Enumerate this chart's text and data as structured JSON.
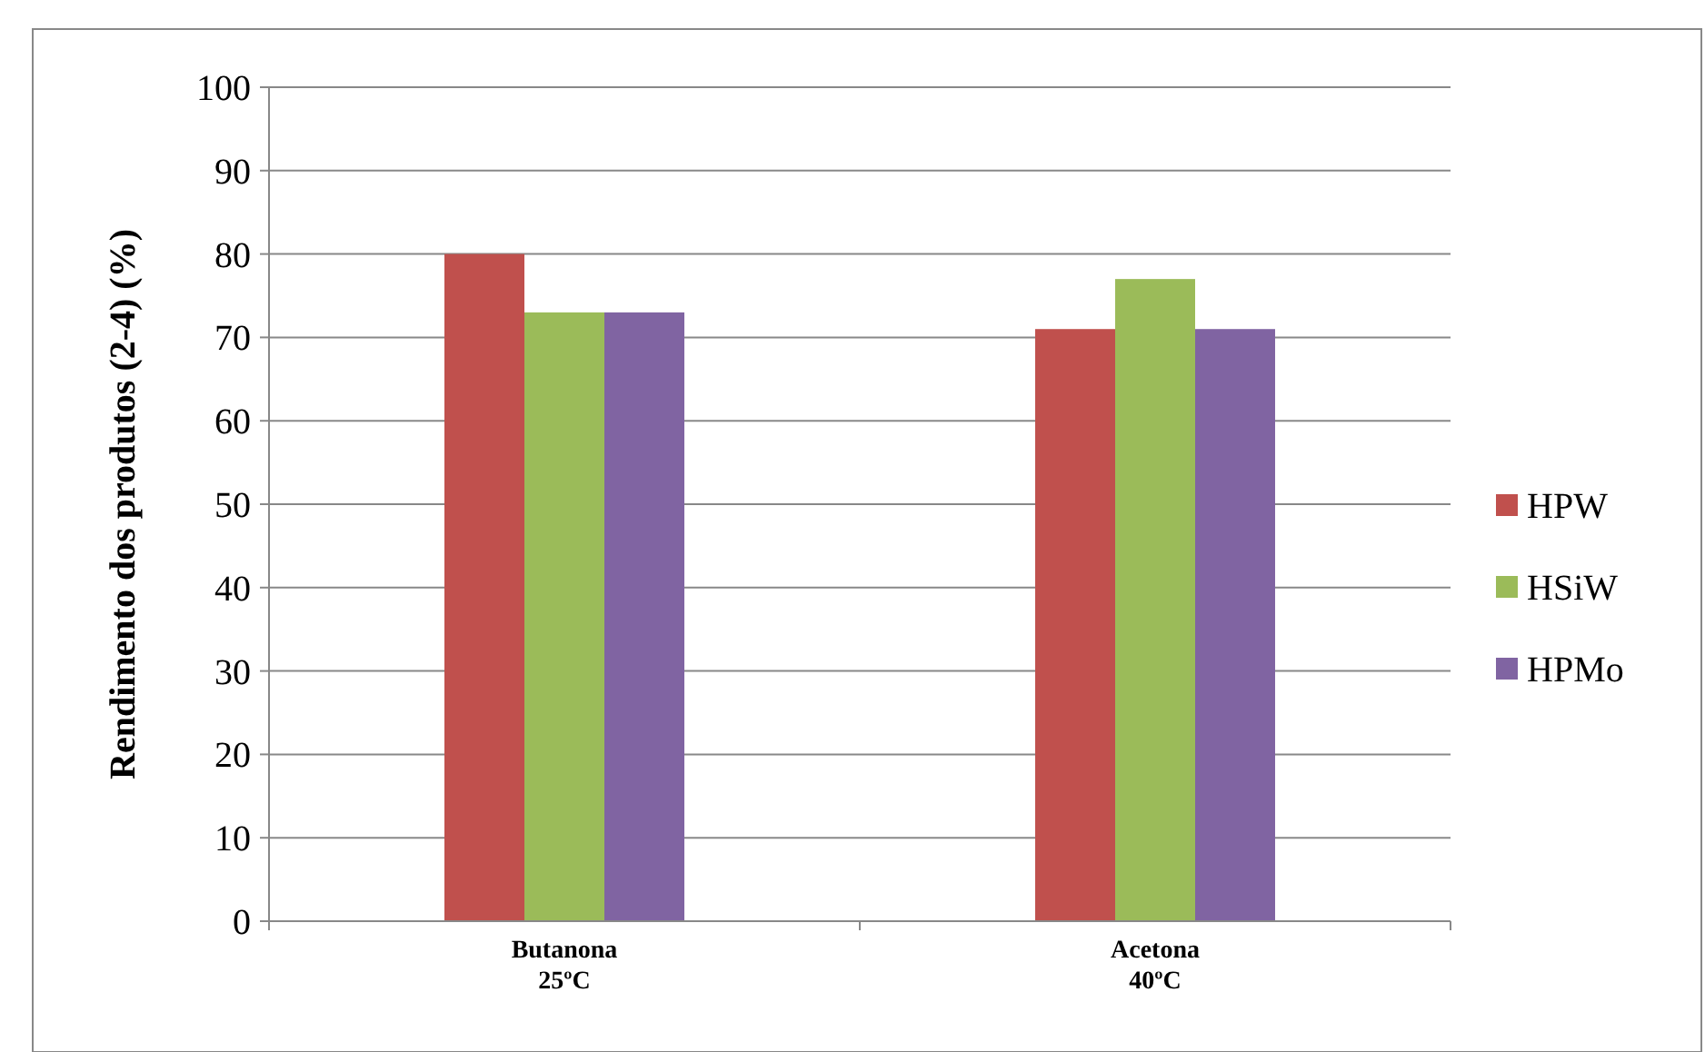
{
  "chart_data": {
    "type": "bar",
    "ylabel": "Rendimento dos produtos (2-4) (%)",
    "categories": [
      "Butanona\n25ºC",
      "Acetona\n40ºC"
    ],
    "series": [
      {
        "name": "HPW",
        "color": "#c0504d",
        "values": [
          80,
          71
        ]
      },
      {
        "name": "HSiW",
        "color": "#9bbb59",
        "values": [
          73,
          77
        ]
      },
      {
        "name": "HPMo",
        "color": "#8064a2",
        "values": [
          73,
          71
        ]
      }
    ],
    "ylim": [
      0,
      100
    ],
    "yticks": [
      0,
      10,
      20,
      30,
      40,
      50,
      60,
      70,
      80,
      90,
      100
    ],
    "grid": "y",
    "legend": "right"
  }
}
